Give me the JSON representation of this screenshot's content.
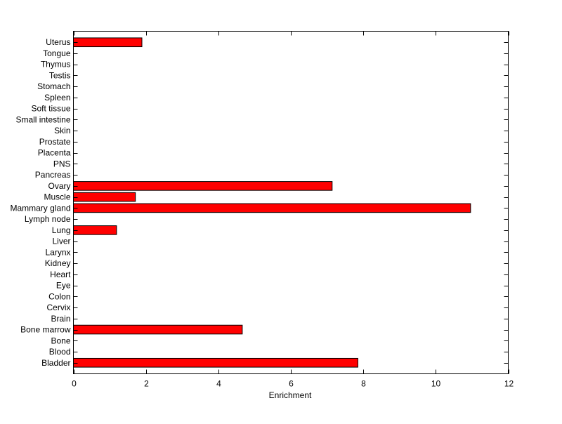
{
  "chart_data": {
    "type": "bar",
    "orientation": "horizontal",
    "title": "",
    "xlabel": "Enrichment",
    "ylabel": "",
    "xlim": [
      0,
      12
    ],
    "ylim": [
      0,
      31
    ],
    "xticks": [
      0,
      2,
      4,
      6,
      8,
      10,
      12
    ],
    "grid": false,
    "bar_color": "#ff0000",
    "edge_color": "#000000",
    "categories": [
      "Bladder",
      "Blood",
      "Bone",
      "Bone marrow",
      "Brain",
      "Cervix",
      "Colon",
      "Eye",
      "Heart",
      "Kidney",
      "Larynx",
      "Liver",
      "Lung",
      "Lymph node",
      "Mammary gland",
      "Muscle",
      "Ovary",
      "Pancreas",
      "PNS",
      "Placenta",
      "Prostate",
      "Skin",
      "Small intestine",
      "Soft tissue",
      "Spleen",
      "Stomach",
      "Testis",
      "Thymus",
      "Tongue",
      "Uterus"
    ],
    "values": [
      7.85,
      0,
      0,
      4.66,
      0,
      0,
      0,
      0,
      0,
      0,
      0,
      0,
      1.19,
      0,
      10.96,
      1.71,
      7.14,
      0,
      0,
      0,
      0,
      0,
      0,
      0,
      0,
      0,
      0,
      0,
      0,
      1.89
    ]
  }
}
